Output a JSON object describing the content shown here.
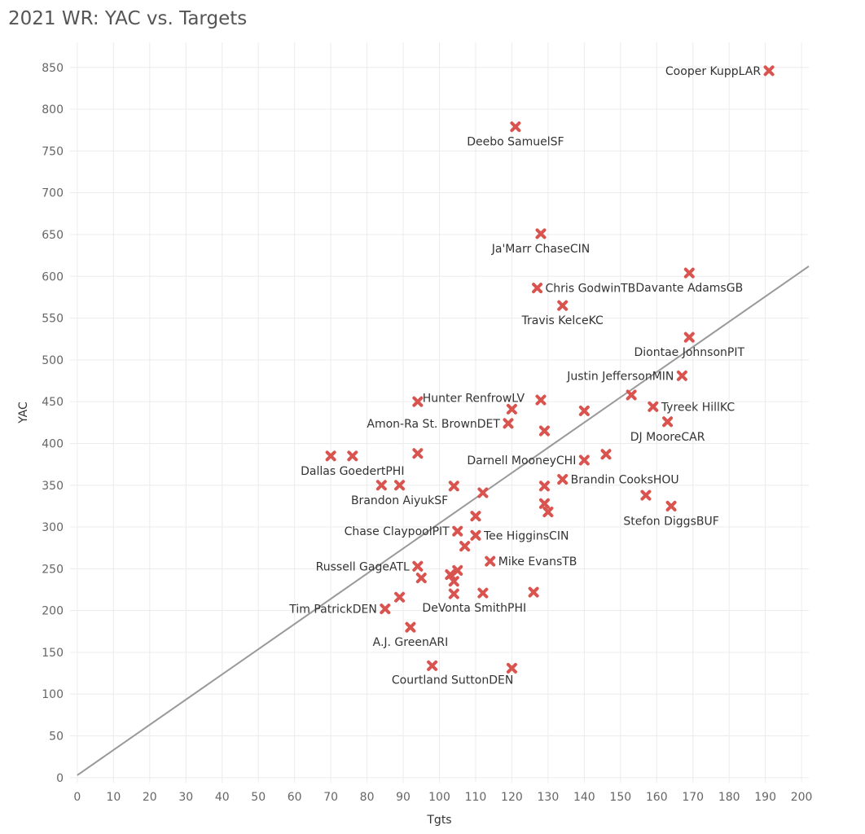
{
  "colors": {
    "marker": "#d9534f",
    "trend": "#999999",
    "grid": "#ececec"
  },
  "chart_data": {
    "type": "scatter",
    "title": "2021 WR: YAC vs. Targets",
    "xlabel": "Tgts",
    "ylabel": "YAC",
    "xlim": [
      -2,
      202
    ],
    "ylim": [
      -6,
      880
    ],
    "xticks": [
      0,
      10,
      20,
      30,
      40,
      50,
      60,
      70,
      80,
      90,
      100,
      110,
      120,
      130,
      140,
      150,
      160,
      170,
      180,
      190,
      200
    ],
    "yticks": [
      0,
      50,
      100,
      150,
      200,
      250,
      300,
      350,
      400,
      450,
      500,
      550,
      600,
      650,
      700,
      750,
      800,
      850
    ],
    "grid": true,
    "marker": "x",
    "trend_line": {
      "x": [
        0,
        202
      ],
      "y": [
        3,
        612
      ]
    },
    "points": [
      {
        "x": 191,
        "y": 846,
        "label": "Cooper KuppLAR",
        "pos": "left"
      },
      {
        "x": 121,
        "y": 779,
        "label": "Deebo SamuelSF",
        "pos": "below"
      },
      {
        "x": 128,
        "y": 651,
        "label": "Ja'Marr ChaseCIN",
        "pos": "below"
      },
      {
        "x": 169,
        "y": 604,
        "label": "Davante AdamsGB",
        "pos": "below"
      },
      {
        "x": 127,
        "y": 586,
        "label": "Chris GodwinTB",
        "pos": "right"
      },
      {
        "x": 134,
        "y": 565,
        "label": "Travis KelceKC",
        "pos": "below"
      },
      {
        "x": 169,
        "y": 527,
        "label": "Diontae JohnsonPIT",
        "pos": "below"
      },
      {
        "x": 167,
        "y": 481,
        "label": "Justin JeffersonMIN",
        "pos": "left"
      },
      {
        "x": 120,
        "y": 441,
        "label": "Hunter RenfrowLV",
        "pos": "above"
      },
      {
        "x": 119,
        "y": 424,
        "label": "Amon-Ra St. BrownDET",
        "pos": "left"
      },
      {
        "x": 159,
        "y": 444,
        "label": "Tyreek HillKC",
        "pos": "right"
      },
      {
        "x": 163,
        "y": 426,
        "label": "DJ MooreCAR",
        "pos": "below"
      },
      {
        "x": 76,
        "y": 385,
        "label": "Dallas GoedertPHI",
        "pos": "below"
      },
      {
        "x": 140,
        "y": 380,
        "label": "Darnell MooneyCHI",
        "pos": "left"
      },
      {
        "x": 134,
        "y": 357,
        "label": "Brandin CooksHOU",
        "pos": "right"
      },
      {
        "x": 89,
        "y": 350,
        "label": "Brandon AiyukSF",
        "pos": "below"
      },
      {
        "x": 164,
        "y": 325,
        "label": "Stefon DiggsBUF",
        "pos": "below"
      },
      {
        "x": 105,
        "y": 295,
        "label": "Chase ClaypoolPIT",
        "pos": "left"
      },
      {
        "x": 110,
        "y": 290,
        "label": "Tee HigginsCIN",
        "pos": "right"
      },
      {
        "x": 114,
        "y": 259,
        "label": "Mike EvansTB",
        "pos": "right"
      },
      {
        "x": 94,
        "y": 253,
        "label": "Russell GageATL",
        "pos": "left"
      },
      {
        "x": 85,
        "y": 202,
        "label": "Tim PatrickDEN",
        "pos": "left"
      },
      {
        "x": 104,
        "y": 220,
        "label": "DeVonta SmithPHI",
        "pos": "below-right"
      },
      {
        "x": 92,
        "y": 180,
        "label": "A.J. GreenARI",
        "pos": "below"
      },
      {
        "x": 98,
        "y": 134,
        "label": "Courtland SuttonDEN",
        "pos": "below-right"
      },
      {
        "x": 94,
        "y": 450
      },
      {
        "x": 128,
        "y": 452
      },
      {
        "x": 140,
        "y": 439
      },
      {
        "x": 153,
        "y": 458
      },
      {
        "x": 129,
        "y": 415
      },
      {
        "x": 70,
        "y": 385
      },
      {
        "x": 94,
        "y": 388
      },
      {
        "x": 146,
        "y": 387
      },
      {
        "x": 84,
        "y": 350
      },
      {
        "x": 104,
        "y": 349
      },
      {
        "x": 112,
        "y": 341
      },
      {
        "x": 129,
        "y": 349
      },
      {
        "x": 157,
        "y": 338
      },
      {
        "x": 110,
        "y": 313
      },
      {
        "x": 129,
        "y": 328
      },
      {
        "x": 130,
        "y": 318
      },
      {
        "x": 107,
        "y": 277
      },
      {
        "x": 95,
        "y": 239
      },
      {
        "x": 103,
        "y": 243
      },
      {
        "x": 105,
        "y": 248
      },
      {
        "x": 104,
        "y": 235
      },
      {
        "x": 89,
        "y": 216
      },
      {
        "x": 112,
        "y": 221
      },
      {
        "x": 126,
        "y": 222
      },
      {
        "x": 120,
        "y": 131
      }
    ]
  }
}
